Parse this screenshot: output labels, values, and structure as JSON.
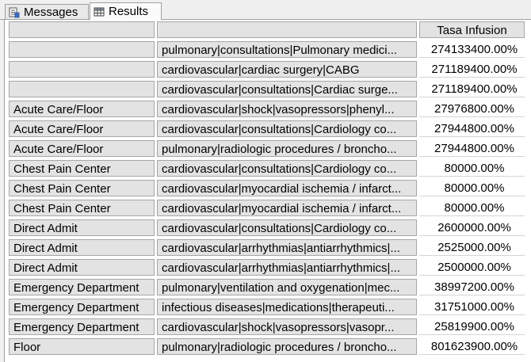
{
  "tabs": {
    "messages": "Messages",
    "results": "Results"
  },
  "grid": {
    "columns": [
      "",
      "",
      "Tasa Infusion"
    ],
    "rows": [
      [
        "",
        "pulmonary|consultations|Pulmonary medici...",
        "274133400.00%"
      ],
      [
        "",
        "cardiovascular|cardiac surgery|CABG",
        "271189400.00%"
      ],
      [
        "",
        "cardiovascular|consultations|Cardiac surge...",
        "271189400.00%"
      ],
      [
        "Acute Care/Floor",
        "cardiovascular|shock|vasopressors|phenyl...",
        "27976800.00%"
      ],
      [
        "Acute Care/Floor",
        "cardiovascular|consultations|Cardiology co...",
        "27944800.00%"
      ],
      [
        "Acute Care/Floor",
        "pulmonary|radiologic procedures / broncho...",
        "27944800.00%"
      ],
      [
        "Chest Pain Center",
        "cardiovascular|consultations|Cardiology co...",
        "80000.00%"
      ],
      [
        "Chest Pain Center",
        "cardiovascular|myocardial ischemia / infarct...",
        "80000.00%"
      ],
      [
        "Chest Pain Center",
        "cardiovascular|myocardial ischemia / infarct...",
        "80000.00%"
      ],
      [
        "Direct Admit",
        "cardiovascular|consultations|Cardiology co...",
        "2600000.00%"
      ],
      [
        "Direct Admit",
        "cardiovascular|arrhythmias|antiarrhythmics|...",
        "2525000.00%"
      ],
      [
        "Direct Admit",
        "cardiovascular|arrhythmias|antiarrhythmics|...",
        "2500000.00%"
      ],
      [
        "Emergency Department",
        "pulmonary|ventilation and oxygenation|mec...",
        "38997200.00%"
      ],
      [
        "Emergency Department",
        "infectious diseases|medications|therapeuti...",
        "31751000.00%"
      ],
      [
        "Emergency Department",
        "cardiovascular|shock|vasopressors|vasopr...",
        "25819900.00%"
      ],
      [
        "Floor",
        "pulmonary|radiologic procedures / broncho...",
        "801623900.00%"
      ]
    ]
  }
}
